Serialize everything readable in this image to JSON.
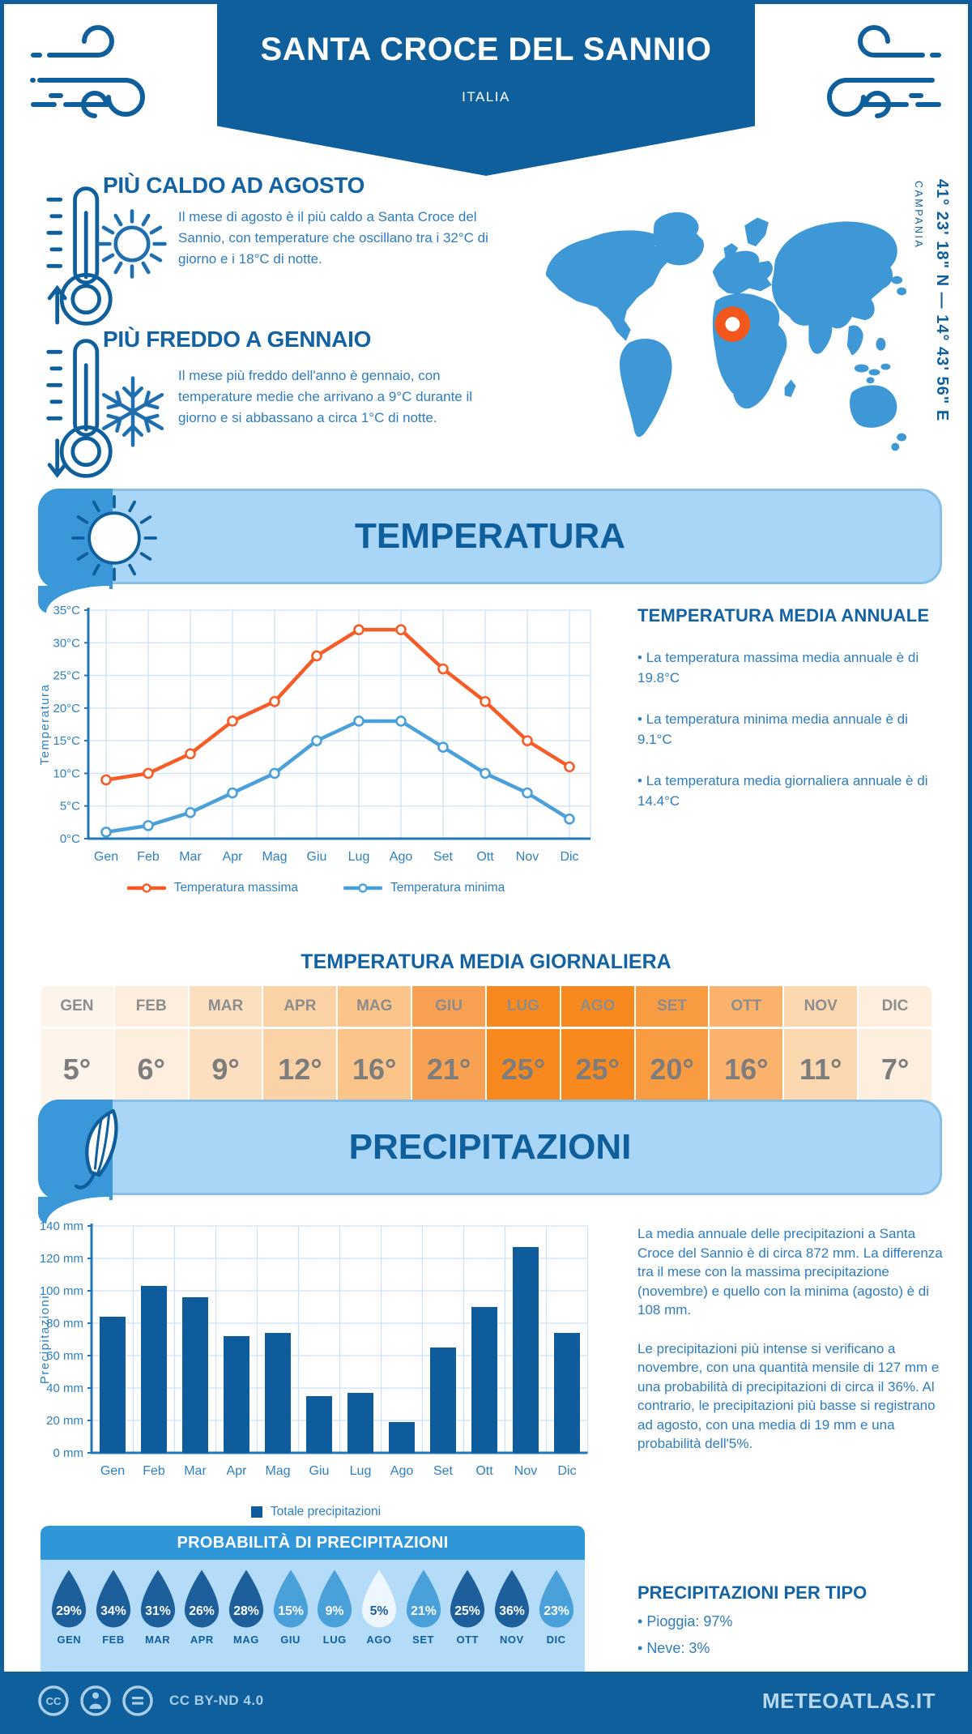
{
  "header": {
    "title": "SANTA CROCE DEL SANNIO",
    "subtitle": "ITALIA"
  },
  "icons": {
    "header_sides": "wind-swirl",
    "hot_block": [
      "thermometer-up",
      "sun"
    ],
    "cold_block": [
      "thermometer-down",
      "snowflake"
    ],
    "temperature_band": "sun",
    "precipitation_band": "umbrella",
    "probability": "raindrop",
    "footer": [
      "cc",
      "attribution-person",
      "no-derivatives-equals"
    ]
  },
  "colors": {
    "dark_blue": "#0f5f9d",
    "medium_blue": "#3a97d8",
    "light_band": "#a9d6f7",
    "probability_body": "#b4dbf8",
    "body_text": "#2e7cbe",
    "map_fill": "#3e98d5",
    "marker_orange": "#f4571c",
    "max_line": "#f65c27",
    "min_line": "#4aa0da",
    "bar_fill": "#0e5c9b"
  },
  "highlights": [
    {
      "title": "PIÙ CALDO AD AGOSTO",
      "text": "Il mese di agosto è il più caldo a Santa Croce del Sannio, con temperature che oscillano tra i 32°C di giorno e i 18°C di notte."
    },
    {
      "title": "PIÙ FREDDO A GENNAIO",
      "text": "Il mese più freddo dell'anno è gennaio, con temperature medie che arrivano a 9°C durante il giorno e si abbassano a circa 1°C di notte."
    }
  ],
  "map": {
    "coordinates": "41° 23' 18\" N — 14° 43' 56\" E",
    "region": "CAMPANIA"
  },
  "temperature_section": {
    "banner_title": "TEMPERATURA",
    "annual": {
      "title": "TEMPERATURA MEDIA ANNUALE",
      "bullets": [
        "La temperatura massima media annuale è di 19.8°C",
        "La temperatura minima media annuale è di 9.1°C",
        "La temperatura media giornaliera annuale è di 14.4°C"
      ]
    },
    "daily_table": {
      "title": "TEMPERATURA MEDIA GIORNALIERA",
      "cells": [
        {
          "month": "GEN",
          "value": "5°",
          "bg": "#fdf5ec"
        },
        {
          "month": "FEB",
          "value": "6°",
          "bg": "#fdeedd"
        },
        {
          "month": "MAR",
          "value": "9°",
          "bg": "#fbdfbf"
        },
        {
          "month": "APR",
          "value": "12°",
          "bg": "#fbd2a6"
        },
        {
          "month": "MAG",
          "value": "16°",
          "bg": "#fbc489"
        },
        {
          "month": "GIU",
          "value": "21°",
          "bg": "#f9a152"
        },
        {
          "month": "LUG",
          "value": "25°",
          "bg": "#f8891f"
        },
        {
          "month": "AGO",
          "value": "25°",
          "bg": "#f8891f"
        },
        {
          "month": "SET",
          "value": "20°",
          "bg": "#f99b41"
        },
        {
          "month": "OTT",
          "value": "16°",
          "bg": "#fab26c"
        },
        {
          "month": "NOV",
          "value": "11°",
          "bg": "#fcd8b1"
        },
        {
          "month": "DIC",
          "value": "7°",
          "bg": "#fdeedd"
        }
      ]
    }
  },
  "precipitation_section": {
    "banner_title": "PRECIPITAZIONI",
    "paragraphs": [
      "La media annuale delle precipitazioni a Santa Croce del Sannio è di circa 872 mm. La differenza tra il mese con la massima precipitazione (novembre) e quello con la minima (agosto) è di 108 mm.",
      "Le precipitazioni più intense si verificano a novembre, con una quantità mensile di 127 mm e una probabilità di precipitazioni di circa il 36%. Al contrario, le precipitazioni più basse si registrano ad agosto, con una media di 19 mm e una probabilità dell'5%."
    ],
    "probability": {
      "title": "PROBABILITÀ DI PRECIPITAZIONI",
      "items": [
        {
          "month": "GEN",
          "value": "29%",
          "fill": "#1c5f9b",
          "text": "#ffffff"
        },
        {
          "month": "FEB",
          "value": "34%",
          "fill": "#1c5f9b",
          "text": "#ffffff"
        },
        {
          "month": "MAR",
          "value": "31%",
          "fill": "#1c5f9b",
          "text": "#ffffff"
        },
        {
          "month": "APR",
          "value": "26%",
          "fill": "#1c5f9b",
          "text": "#ffffff"
        },
        {
          "month": "MAG",
          "value": "28%",
          "fill": "#1c5f9b",
          "text": "#ffffff"
        },
        {
          "month": "GIU",
          "value": "15%",
          "fill": "#4aa0d9",
          "text": "#ffffff"
        },
        {
          "month": "LUG",
          "value": "9%",
          "fill": "#4aa0d9",
          "text": "#ffffff"
        },
        {
          "month": "AGO",
          "value": "5%",
          "fill": "#eef7fd",
          "text": "#1c5f9b"
        },
        {
          "month": "SET",
          "value": "21%",
          "fill": "#4aa0d9",
          "text": "#ffffff"
        },
        {
          "month": "OTT",
          "value": "25%",
          "fill": "#1c5f9b",
          "text": "#ffffff"
        },
        {
          "month": "NOV",
          "value": "36%",
          "fill": "#1c5f9b",
          "text": "#ffffff"
        },
        {
          "month": "DIC",
          "value": "23%",
          "fill": "#4aa0d9",
          "text": "#ffffff"
        }
      ]
    },
    "by_type": {
      "title": "PRECIPITAZIONI PER TIPO",
      "bullets": [
        "Pioggia: 97%",
        "Neve: 3%"
      ]
    }
  },
  "chart_data": [
    {
      "type": "line",
      "categories": [
        "Gen",
        "Feb",
        "Mar",
        "Apr",
        "Mag",
        "Giu",
        "Lug",
        "Ago",
        "Set",
        "Ott",
        "Nov",
        "Dic"
      ],
      "series": [
        {
          "name": "Temperatura massima",
          "color": "#f65c27",
          "values": [
            9,
            10,
            13,
            18,
            21,
            28,
            32,
            32,
            26,
            21,
            15,
            11
          ]
        },
        {
          "name": "Temperatura minima",
          "color": "#4aa0da",
          "values": [
            1,
            2,
            4,
            7,
            10,
            15,
            18,
            18,
            14,
            10,
            7,
            3
          ]
        }
      ],
      "ylabel": "Temperatura",
      "ytick_suffix": "°C",
      "ylim": [
        0,
        35
      ],
      "ystep": 5,
      "grid": true,
      "legend_position": "bottom"
    },
    {
      "type": "bar",
      "categories": [
        "Gen",
        "Feb",
        "Mar",
        "Apr",
        "Mag",
        "Giu",
        "Lug",
        "Ago",
        "Set",
        "Ott",
        "Nov",
        "Dic"
      ],
      "series": [
        {
          "name": "Totale precipitazioni",
          "color": "#0e5c9b",
          "values": [
            84,
            103,
            96,
            72,
            74,
            35,
            37,
            19,
            65,
            90,
            127,
            74
          ]
        }
      ],
      "ylabel": "Precipitazioni",
      "ytick_suffix": " mm",
      "ylim": [
        0,
        140
      ],
      "ystep": 20,
      "grid": true,
      "legend_position": "bottom"
    }
  ],
  "footer": {
    "license": "CC BY-ND 4.0",
    "site": "METEOATLAS.IT"
  }
}
